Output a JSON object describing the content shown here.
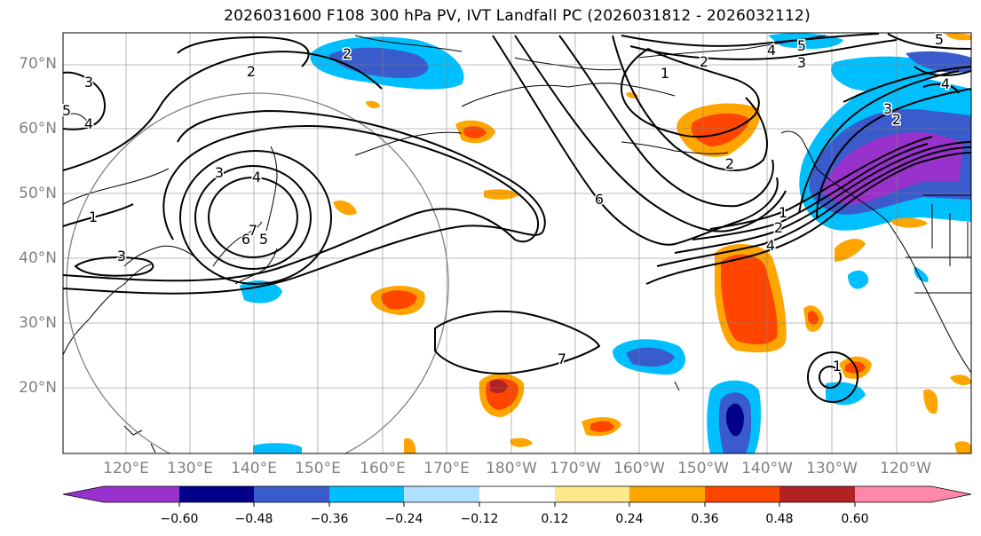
{
  "title": "2026031600 F108 300 hPa PV, IVT Landfall PC (2026031812 - 2026032112)",
  "map": {
    "latitude_labels": [
      "70°N",
      "60°N",
      "50°N",
      "40°N",
      "30°N",
      "20°N"
    ],
    "longitude_labels": [
      "120°E",
      "130°E",
      "140°E",
      "150°E",
      "160°E",
      "170°E",
      "180°W",
      "170°W",
      "160°W",
      "150°W",
      "140°W",
      "130°W",
      "120°W"
    ],
    "contour_labels": [
      "3",
      "2",
      "5",
      "4",
      "1",
      "2",
      "3",
      "4",
      "5",
      "6",
      "7",
      "6",
      "5",
      "4",
      "3",
      "2",
      "1",
      "2",
      "3",
      "4",
      "2",
      "1",
      "7",
      "3",
      "2",
      "5",
      "4",
      "1"
    ]
  },
  "colorbar": {
    "ticks": [
      "−0.60",
      "−0.48",
      "−0.36",
      "−0.24",
      "−0.12",
      "0.12",
      "0.24",
      "0.36",
      "0.48",
      "0.60"
    ],
    "colors": [
      "#9932cc",
      "#00008b",
      "#3a5bcc",
      "#00bfff",
      "#b0e0ff",
      "#ffffff",
      "#ffe98a",
      "#ffa500",
      "#ff4500",
      "#b22222",
      "#ff88aa"
    ]
  }
}
